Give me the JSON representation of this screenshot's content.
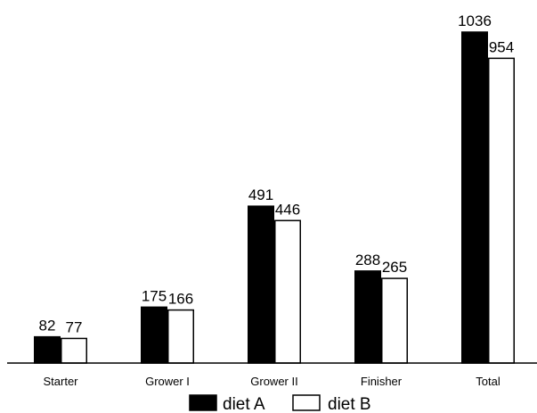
{
  "chart_data": {
    "type": "bar",
    "categories": [
      "Starter",
      "Grower I",
      "Grower II",
      "Finisher",
      "Total"
    ],
    "series": [
      {
        "name": "diet A",
        "values": [
          82,
          175,
          491,
          288,
          1036
        ],
        "color": "#000000"
      },
      {
        "name": "diet B",
        "values": [
          77,
          166,
          446,
          265,
          954
        ],
        "color": "#ffffff"
      }
    ],
    "data_labels": [
      [
        "82",
        "175",
        "491",
        "288",
        "1036"
      ],
      [
        "77",
        "166",
        "446",
        "265",
        "954"
      ]
    ],
    "title": "",
    "xlabel": "",
    "ylabel": "",
    "ylim": [
      0,
      1036
    ],
    "grid": false,
    "legend_position": "bottom"
  }
}
